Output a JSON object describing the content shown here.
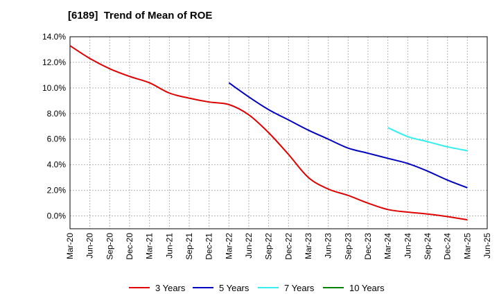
{
  "chart_data": {
    "type": "line",
    "title": "[6189]  Trend of Mean of ROE",
    "xlabel": "",
    "ylabel": "",
    "ylim": [
      -1.0,
      14.0
    ],
    "yticks": [
      0,
      2,
      4,
      6,
      8,
      10,
      12,
      14
    ],
    "ytick_labels": [
      "0.0%",
      "2.0%",
      "4.0%",
      "6.0%",
      "8.0%",
      "10.0%",
      "12.0%",
      "14.0%"
    ],
    "categories": [
      "Mar-20",
      "Jun-20",
      "Sep-20",
      "Dec-20",
      "Mar-21",
      "Jun-21",
      "Sep-21",
      "Dec-21",
      "Mar-22",
      "Jun-22",
      "Sep-22",
      "Dec-22",
      "Mar-23",
      "Jun-23",
      "Sep-23",
      "Dec-23",
      "Mar-24",
      "Jun-24",
      "Sep-24",
      "Dec-24",
      "Mar-25",
      "Jun-25"
    ],
    "grid": true,
    "legend_position": "bottom",
    "series": [
      {
        "name": "3 Years",
        "color": "#e00000",
        "values": [
          13.3,
          12.3,
          11.5,
          10.9,
          10.4,
          9.6,
          9.2,
          8.9,
          8.7,
          7.9,
          6.5,
          4.8,
          3.0,
          2.1,
          1.6,
          1.0,
          0.5,
          0.3,
          0.15,
          -0.05,
          -0.3,
          null
        ]
      },
      {
        "name": "5 Years",
        "color": "#0000c0",
        "values": [
          null,
          null,
          null,
          null,
          null,
          null,
          null,
          null,
          10.4,
          9.3,
          8.3,
          7.5,
          6.7,
          6.0,
          5.3,
          4.9,
          4.5,
          4.1,
          3.5,
          2.8,
          2.2,
          null
        ]
      },
      {
        "name": "7 Years",
        "color": "#33eeee",
        "values": [
          null,
          null,
          null,
          null,
          null,
          null,
          null,
          null,
          null,
          null,
          null,
          null,
          null,
          null,
          null,
          null,
          6.9,
          6.2,
          5.8,
          5.4,
          5.1,
          null
        ]
      },
      {
        "name": "10 Years",
        "color": "#008000",
        "values": [
          null,
          null,
          null,
          null,
          null,
          null,
          null,
          null,
          null,
          null,
          null,
          null,
          null,
          null,
          null,
          null,
          null,
          null,
          null,
          null,
          null,
          null
        ]
      }
    ]
  }
}
